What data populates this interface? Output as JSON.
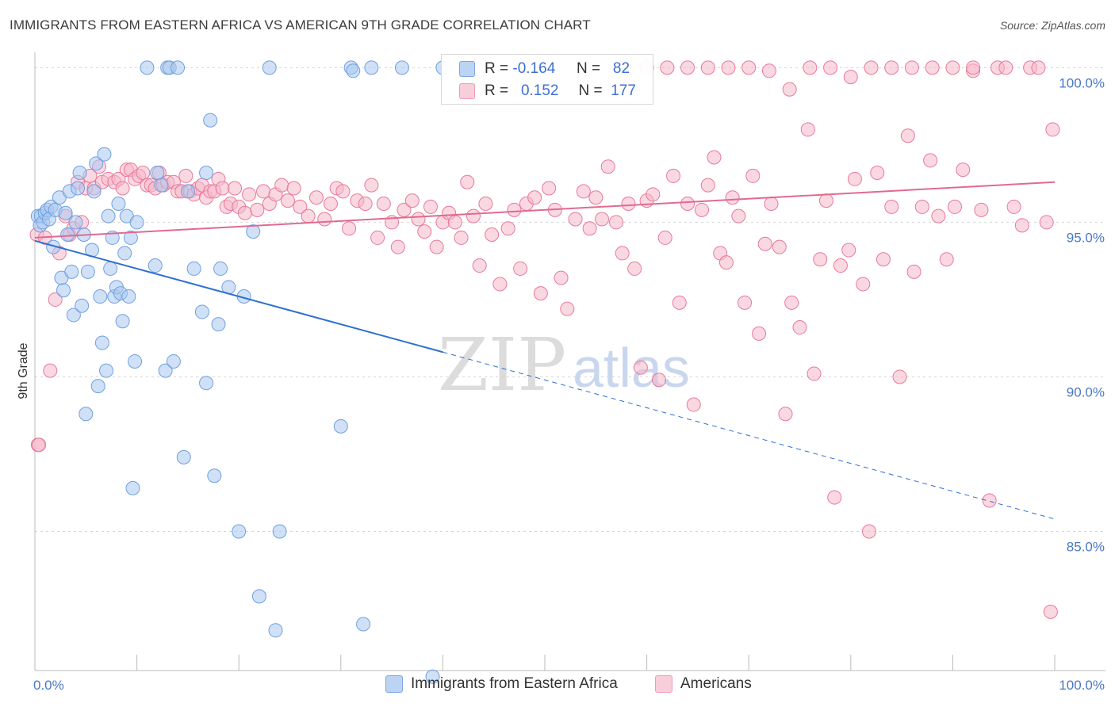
{
  "header": {
    "title": "IMMIGRANTS FROM EASTERN AFRICA VS AMERICAN 9TH GRADE CORRELATION CHART",
    "source": "Source: ZipAtlas.com"
  },
  "stats": {
    "rows": [
      {
        "label_r": "R =",
        "r": "-0.164",
        "label_n": "N =",
        "n": "82",
        "color": "#a9c8f0"
      },
      {
        "label_r": "R =",
        "r": "0.152",
        "label_n": "N =",
        "n": "177",
        "color": "#f6b8cb"
      }
    ]
  },
  "watermark": {
    "zip": "ZIP",
    "atlas": "atlas"
  },
  "legend": [
    {
      "label": "Immigrants from Eastern Africa",
      "color": "#a9c8f0"
    },
    {
      "label": "Americans",
      "color": "#f6b8cb"
    }
  ],
  "chart_data": {
    "type": "scatter",
    "xlabel": "",
    "ylabel": "9th Grade",
    "xlim": [
      0,
      100
    ],
    "ylim": [
      80.5,
      100.6
    ],
    "x_tick_labels": [
      "0.0%",
      "100.0%"
    ],
    "y_ticks": [
      {
        "value": 100,
        "label": "100.0%"
      },
      {
        "value": 95,
        "label": "95.0%"
      },
      {
        "value": 90,
        "label": "90.0%"
      },
      {
        "value": 85,
        "label": "85.0%"
      }
    ],
    "grid": "horizontal dashed",
    "legend_position": "bottom-center",
    "series": [
      {
        "name": "Immigrants from Eastern Africa",
        "color": "#6ea0e0",
        "fill": "#a9c8f0",
        "trend": {
          "x": [
            0,
            40
          ],
          "y": [
            94.4,
            90.8
          ],
          "dashed_extension": {
            "x": [
              40,
              100
            ],
            "y": [
              90.8,
              85.4
            ]
          }
        },
        "points": [
          [
            0.3,
            95.2
          ],
          [
            0.5,
            94.9
          ],
          [
            0.6,
            95.2
          ],
          [
            0.8,
            95.0
          ],
          [
            1.0,
            95.3
          ],
          [
            1.2,
            95.4
          ],
          [
            1.4,
            95.1
          ],
          [
            1.6,
            95.5
          ],
          [
            1.8,
            94.2
          ],
          [
            2.0,
            95.4
          ],
          [
            2.4,
            95.8
          ],
          [
            2.6,
            93.2
          ],
          [
            2.8,
            92.8
          ],
          [
            3.0,
            95.3
          ],
          [
            3.2,
            94.6
          ],
          [
            3.4,
            96.0
          ],
          [
            3.6,
            93.4
          ],
          [
            3.8,
            92.0
          ],
          [
            4.0,
            95.0
          ],
          [
            4.2,
            96.1
          ],
          [
            4.4,
            96.6
          ],
          [
            4.6,
            92.3
          ],
          [
            4.8,
            94.6
          ],
          [
            5.0,
            88.8
          ],
          [
            5.2,
            93.4
          ],
          [
            5.6,
            94.1
          ],
          [
            5.8,
            96.0
          ],
          [
            6.0,
            96.9
          ],
          [
            6.2,
            89.7
          ],
          [
            6.4,
            92.6
          ],
          [
            6.6,
            91.1
          ],
          [
            6.8,
            97.2
          ],
          [
            7.0,
            90.2
          ],
          [
            7.2,
            95.2
          ],
          [
            7.4,
            93.5
          ],
          [
            7.6,
            94.5
          ],
          [
            7.8,
            92.6
          ],
          [
            8.0,
            92.9
          ],
          [
            8.2,
            95.6
          ],
          [
            8.4,
            92.7
          ],
          [
            8.6,
            91.8
          ],
          [
            8.8,
            94.0
          ],
          [
            9.0,
            95.2
          ],
          [
            9.2,
            92.6
          ],
          [
            9.4,
            94.5
          ],
          [
            9.6,
            86.4
          ],
          [
            9.8,
            90.5
          ],
          [
            10.0,
            95.0
          ],
          [
            11.0,
            100.0
          ],
          [
            11.8,
            93.6
          ],
          [
            12.0,
            96.6
          ],
          [
            12.4,
            96.2
          ],
          [
            12.8,
            90.2
          ],
          [
            13.0,
            100.0
          ],
          [
            13.2,
            100.0
          ],
          [
            13.6,
            90.5
          ],
          [
            14.0,
            100.0
          ],
          [
            14.6,
            87.4
          ],
          [
            15.0,
            96.0
          ],
          [
            15.6,
            93.5
          ],
          [
            16.4,
            92.1
          ],
          [
            16.8,
            89.8
          ],
          [
            16.8,
            96.6
          ],
          [
            17.2,
            98.3
          ],
          [
            17.6,
            86.8
          ],
          [
            18.0,
            91.7
          ],
          [
            18.2,
            93.5
          ],
          [
            19.0,
            92.9
          ],
          [
            20.0,
            85.0
          ],
          [
            20.5,
            92.6
          ],
          [
            21.4,
            94.7
          ],
          [
            22.0,
            82.9
          ],
          [
            23.0,
            100.0
          ],
          [
            23.6,
            81.8
          ],
          [
            24.0,
            85.0
          ],
          [
            30.0,
            88.4
          ],
          [
            31.0,
            100.0
          ],
          [
            31.2,
            99.9
          ],
          [
            32.2,
            82.0
          ],
          [
            33.0,
            100.0
          ],
          [
            36.0,
            100.0
          ],
          [
            39.0,
            80.3
          ],
          [
            40.0,
            100.0
          ]
        ]
      },
      {
        "name": "Americans",
        "color": "#e8799c",
        "fill": "#f6b8cb",
        "trend": {
          "x": [
            0,
            100
          ],
          "y": [
            94.5,
            96.3
          ]
        },
        "points": [
          [
            0.2,
            94.6
          ],
          [
            0.3,
            87.8
          ],
          [
            0.4,
            87.8
          ],
          [
            1.0,
            94.5
          ],
          [
            1.5,
            90.2
          ],
          [
            2.0,
            92.5
          ],
          [
            2.4,
            94.0
          ],
          [
            3.0,
            95.2
          ],
          [
            3.4,
            94.6
          ],
          [
            3.8,
            94.8
          ],
          [
            4.2,
            96.3
          ],
          [
            4.6,
            95.0
          ],
          [
            5.0,
            96.1
          ],
          [
            5.4,
            96.5
          ],
          [
            5.8,
            96.1
          ],
          [
            6.3,
            96.8
          ],
          [
            6.6,
            96.3
          ],
          [
            7.2,
            96.4
          ],
          [
            7.8,
            96.3
          ],
          [
            8.2,
            96.4
          ],
          [
            8.6,
            96.1
          ],
          [
            9.0,
            96.7
          ],
          [
            9.4,
            96.7
          ],
          [
            9.8,
            96.4
          ],
          [
            10.2,
            96.5
          ],
          [
            10.6,
            96.6
          ],
          [
            11.0,
            96.2
          ],
          [
            11.4,
            96.2
          ],
          [
            11.8,
            96.1
          ],
          [
            12.2,
            96.6
          ],
          [
            12.6,
            96.2
          ],
          [
            13.0,
            96.3
          ],
          [
            13.6,
            96.3
          ],
          [
            14.0,
            96.0
          ],
          [
            14.4,
            96.0
          ],
          [
            14.8,
            96.5
          ],
          [
            15.2,
            96.0
          ],
          [
            15.6,
            95.9
          ],
          [
            16.0,
            96.1
          ],
          [
            16.4,
            96.2
          ],
          [
            16.8,
            95.8
          ],
          [
            17.2,
            96.0
          ],
          [
            17.6,
            96.0
          ],
          [
            18.0,
            96.4
          ],
          [
            18.4,
            96.1
          ],
          [
            18.8,
            95.5
          ],
          [
            19.2,
            95.6
          ],
          [
            19.6,
            96.1
          ],
          [
            20.0,
            95.5
          ],
          [
            20.6,
            95.3
          ],
          [
            21.0,
            95.9
          ],
          [
            21.8,
            95.4
          ],
          [
            22.4,
            96.0
          ],
          [
            23.0,
            95.6
          ],
          [
            23.6,
            95.9
          ],
          [
            24.2,
            96.2
          ],
          [
            24.8,
            95.7
          ],
          [
            25.4,
            96.1
          ],
          [
            26.0,
            95.5
          ],
          [
            26.8,
            95.2
          ],
          [
            27.6,
            95.8
          ],
          [
            28.4,
            95.1
          ],
          [
            29.0,
            95.6
          ],
          [
            29.6,
            96.1
          ],
          [
            30.2,
            96.0
          ],
          [
            30.8,
            94.8
          ],
          [
            31.6,
            95.7
          ],
          [
            32.4,
            95.6
          ],
          [
            33.0,
            96.2
          ],
          [
            33.6,
            94.5
          ],
          [
            34.2,
            95.6
          ],
          [
            35.0,
            95.0
          ],
          [
            35.6,
            94.2
          ],
          [
            36.2,
            95.4
          ],
          [
            37.0,
            95.7
          ],
          [
            37.6,
            95.1
          ],
          [
            38.2,
            94.7
          ],
          [
            38.8,
            95.5
          ],
          [
            39.4,
            94.2
          ],
          [
            40.0,
            95.0
          ],
          [
            40.6,
            95.3
          ],
          [
            41.2,
            95.0
          ],
          [
            41.8,
            94.5
          ],
          [
            42.4,
            96.3
          ],
          [
            43.0,
            95.2
          ],
          [
            43.6,
            93.6
          ],
          [
            44.2,
            95.6
          ],
          [
            44.8,
            94.6
          ],
          [
            45.6,
            93.0
          ],
          [
            46.4,
            94.8
          ],
          [
            47.0,
            95.4
          ],
          [
            47.6,
            93.5
          ],
          [
            48.2,
            95.6
          ],
          [
            49.0,
            95.8
          ],
          [
            49.6,
            92.7
          ],
          [
            50.4,
            96.1
          ],
          [
            51.0,
            95.4
          ],
          [
            51.6,
            93.2
          ],
          [
            52.2,
            92.2
          ],
          [
            53.0,
            95.1
          ],
          [
            53.8,
            96.0
          ],
          [
            54.4,
            94.8
          ],
          [
            55.0,
            95.8
          ],
          [
            55.6,
            95.1
          ],
          [
            56.2,
            96.8
          ],
          [
            57.0,
            95.0
          ],
          [
            57.6,
            94.0
          ],
          [
            58.2,
            95.6
          ],
          [
            58.8,
            93.5
          ],
          [
            59.4,
            90.3
          ],
          [
            60.0,
            95.7
          ],
          [
            60.6,
            95.9
          ],
          [
            61.2,
            89.9
          ],
          [
            61.8,
            94.5
          ],
          [
            62.6,
            96.5
          ],
          [
            63.2,
            92.4
          ],
          [
            64.0,
            95.6
          ],
          [
            64.6,
            89.1
          ],
          [
            65.4,
            95.4
          ],
          [
            66.0,
            96.2
          ],
          [
            66.6,
            97.1
          ],
          [
            67.2,
            94.0
          ],
          [
            67.8,
            93.7
          ],
          [
            68.4,
            95.8
          ],
          [
            69.0,
            95.2
          ],
          [
            69.6,
            92.4
          ],
          [
            70.4,
            96.5
          ],
          [
            71.0,
            91.4
          ],
          [
            71.6,
            94.3
          ],
          [
            72.2,
            95.6
          ],
          [
            73.0,
            94.2
          ],
          [
            73.6,
            88.8
          ],
          [
            74.2,
            92.4
          ],
          [
            75.0,
            91.6
          ],
          [
            75.8,
            98.0
          ],
          [
            76.4,
            90.1
          ],
          [
            77.0,
            93.8
          ],
          [
            77.6,
            95.7
          ],
          [
            78.4,
            86.1
          ],
          [
            79.0,
            93.6
          ],
          [
            79.8,
            94.1
          ],
          [
            80.4,
            96.4
          ],
          [
            81.2,
            93.0
          ],
          [
            81.8,
            85.0
          ],
          [
            82.6,
            96.6
          ],
          [
            83.2,
            93.8
          ],
          [
            84.0,
            95.5
          ],
          [
            84.8,
            90.0
          ],
          [
            85.6,
            97.8
          ],
          [
            86.2,
            93.4
          ],
          [
            87.0,
            95.5
          ],
          [
            87.8,
            97.0
          ],
          [
            88.6,
            95.2
          ],
          [
            89.4,
            93.8
          ],
          [
            90.2,
            95.5
          ],
          [
            91.0,
            96.7
          ],
          [
            92.0,
            99.9
          ],
          [
            92.8,
            95.4
          ],
          [
            93.6,
            86.0
          ],
          [
            94.4,
            100.0
          ],
          [
            95.2,
            100.0
          ],
          [
            96.0,
            95.5
          ],
          [
            96.8,
            94.9
          ],
          [
            97.6,
            100.0
          ],
          [
            98.4,
            100.0
          ],
          [
            99.2,
            95.0
          ],
          [
            99.8,
            98.0
          ],
          [
            99.6,
            82.4
          ],
          [
            92.0,
            100.0
          ],
          [
            60.0,
            100.0
          ],
          [
            62.0,
            100.0
          ],
          [
            64.0,
            100.0
          ],
          [
            66.0,
            100.0
          ],
          [
            68.0,
            100.0
          ],
          [
            70.0,
            100.0
          ],
          [
            72.0,
            99.9
          ],
          [
            74.0,
            99.3
          ],
          [
            76.0,
            100.0
          ],
          [
            78.0,
            100.0
          ],
          [
            80.0,
            99.7
          ],
          [
            82.0,
            100.0
          ],
          [
            84.0,
            100.0
          ],
          [
            86.0,
            100.0
          ],
          [
            88.0,
            100.0
          ],
          [
            90.0,
            100.0
          ]
        ]
      }
    ]
  }
}
